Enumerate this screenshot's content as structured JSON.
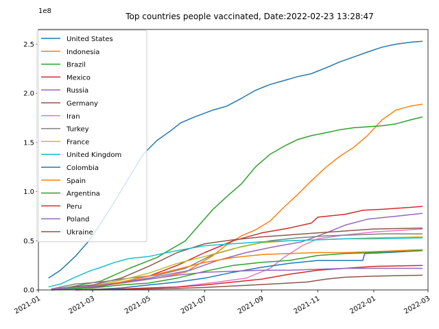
{
  "chart_data": {
    "type": "line",
    "title": "Top countries people vaccinated, Date:2022-02-23 13:28:47",
    "xlabel": "",
    "ylabel": "",
    "y_scale_label": "1e8",
    "xlim": [
      "2021-01-01",
      "2022-03-01"
    ],
    "ylim": [
      0,
      2.65
    ],
    "x_ticks": [
      "2021-01",
      "2021-03",
      "2021-05",
      "2021-07",
      "2021-09",
      "2021-11",
      "2022-01",
      "2022-03"
    ],
    "y_ticks": [
      0.0,
      0.5,
      1.0,
      1.5,
      2.0,
      2.5
    ],
    "y_tick_labels": [
      "0.0",
      "0.5",
      "1.0",
      "1.5",
      "2.0",
      "2.5"
    ],
    "grid": false,
    "legend_position": "top-left",
    "series": [
      {
        "name": "United States",
        "color": "#1f77b4",
        "points": [
          [
            "2021-01-12",
            0.12
          ],
          [
            "2021-01-25",
            0.2
          ],
          [
            "2021-02-10",
            0.34
          ],
          [
            "2021-02-25",
            0.5
          ],
          [
            "2021-03-10",
            0.68
          ],
          [
            "2021-03-25",
            0.9
          ],
          [
            "2021-04-10",
            1.15
          ],
          [
            "2021-04-25",
            1.38
          ],
          [
            "2021-05-10",
            1.52
          ],
          [
            "2021-05-25",
            1.62
          ],
          [
            "2021-06-05",
            1.7
          ],
          [
            "2021-06-20",
            1.76
          ],
          [
            "2021-07-10",
            1.83
          ],
          [
            "2021-07-25",
            1.87
          ],
          [
            "2021-08-10",
            1.95
          ],
          [
            "2021-08-25",
            2.03
          ],
          [
            "2021-09-10",
            2.09
          ],
          [
            "2021-09-25",
            2.13
          ],
          [
            "2021-10-10",
            2.17
          ],
          [
            "2021-10-25",
            2.2
          ],
          [
            "2021-11-10",
            2.26
          ],
          [
            "2021-11-25",
            2.32
          ],
          [
            "2021-12-10",
            2.37
          ],
          [
            "2021-12-25",
            2.42
          ],
          [
            "2022-01-10",
            2.47
          ],
          [
            "2022-01-25",
            2.5
          ],
          [
            "2022-02-10",
            2.52
          ],
          [
            "2022-02-23",
            2.53
          ]
        ]
      },
      {
        "name": "Indonesia",
        "color": "#ff7f0e",
        "points": [
          [
            "2021-01-15",
            0.0
          ],
          [
            "2021-02-10",
            0.01
          ],
          [
            "2021-03-10",
            0.04
          ],
          [
            "2021-04-10",
            0.08
          ],
          [
            "2021-05-10",
            0.12
          ],
          [
            "2021-06-10",
            0.18
          ],
          [
            "2021-07-10",
            0.35
          ],
          [
            "2021-07-25",
            0.46
          ],
          [
            "2021-08-10",
            0.55
          ],
          [
            "2021-08-25",
            0.61
          ],
          [
            "2021-09-10",
            0.7
          ],
          [
            "2021-09-25",
            0.84
          ],
          [
            "2021-10-10",
            0.97
          ],
          [
            "2021-10-25",
            1.11
          ],
          [
            "2021-11-10",
            1.25
          ],
          [
            "2021-11-25",
            1.36
          ],
          [
            "2021-12-10",
            1.45
          ],
          [
            "2021-12-25",
            1.57
          ],
          [
            "2022-01-10",
            1.73
          ],
          [
            "2022-01-25",
            1.83
          ],
          [
            "2022-02-10",
            1.87
          ],
          [
            "2022-02-23",
            1.89
          ]
        ]
      },
      {
        "name": "Brazil",
        "color": "#2ca02c",
        "points": [
          [
            "2021-01-18",
            0.0
          ],
          [
            "2021-02-10",
            0.04
          ],
          [
            "2021-03-10",
            0.09
          ],
          [
            "2021-04-10",
            0.22
          ],
          [
            "2021-05-10",
            0.33
          ],
          [
            "2021-06-10",
            0.5
          ],
          [
            "2021-07-10",
            0.82
          ],
          [
            "2021-07-25",
            0.95
          ],
          [
            "2021-08-10",
            1.08
          ],
          [
            "2021-08-25",
            1.25
          ],
          [
            "2021-09-10",
            1.38
          ],
          [
            "2021-09-25",
            1.46
          ],
          [
            "2021-10-10",
            1.53
          ],
          [
            "2021-10-25",
            1.57
          ],
          [
            "2021-11-10",
            1.6
          ],
          [
            "2021-11-25",
            1.63
          ],
          [
            "2021-12-10",
            1.65
          ],
          [
            "2021-12-25",
            1.66
          ],
          [
            "2022-01-10",
            1.67
          ],
          [
            "2022-01-25",
            1.69
          ],
          [
            "2022-02-10",
            1.73
          ],
          [
            "2022-02-23",
            1.76
          ]
        ]
      },
      {
        "name": "Mexico",
        "color": "#d62728",
        "points": [
          [
            "2021-01-15",
            0.0
          ],
          [
            "2021-03-01",
            0.02
          ],
          [
            "2021-04-01",
            0.08
          ],
          [
            "2021-05-01",
            0.14
          ],
          [
            "2021-06-01",
            0.25
          ],
          [
            "2021-07-01",
            0.38
          ],
          [
            "2021-08-01",
            0.5
          ],
          [
            "2021-09-01",
            0.58
          ],
          [
            "2021-10-01",
            0.63
          ],
          [
            "2021-10-25",
            0.68
          ],
          [
            "2021-11-01",
            0.74
          ],
          [
            "2021-12-01",
            0.77
          ],
          [
            "2021-12-20",
            0.81
          ],
          [
            "2022-01-10",
            0.82
          ],
          [
            "2022-02-10",
            0.84
          ],
          [
            "2022-02-23",
            0.85
          ]
        ]
      },
      {
        "name": "Russia",
        "color": "#9467bd",
        "points": [
          [
            "2021-01-15",
            0.01
          ],
          [
            "2021-03-01",
            0.03
          ],
          [
            "2021-05-01",
            0.12
          ],
          [
            "2021-06-15",
            0.2
          ],
          [
            "2021-07-15",
            0.3
          ],
          [
            "2021-08-15",
            0.38
          ],
          [
            "2021-09-15",
            0.44
          ],
          [
            "2021-10-15",
            0.49
          ],
          [
            "2021-11-10",
            0.58
          ],
          [
            "2021-12-01",
            0.66
          ],
          [
            "2021-12-25",
            0.72
          ],
          [
            "2022-01-25",
            0.75
          ],
          [
            "2022-02-23",
            0.78
          ]
        ]
      },
      {
        "name": "Germany",
        "color": "#8c564b",
        "points": [
          [
            "2021-01-15",
            0.01
          ],
          [
            "2021-03-01",
            0.05
          ],
          [
            "2021-04-01",
            0.12
          ],
          [
            "2021-05-01",
            0.24
          ],
          [
            "2021-06-01",
            0.38
          ],
          [
            "2021-07-01",
            0.47
          ],
          [
            "2021-08-01",
            0.51
          ],
          [
            "2021-09-01",
            0.54
          ],
          [
            "2021-10-01",
            0.56
          ],
          [
            "2021-11-01",
            0.58
          ],
          [
            "2021-12-01",
            0.6
          ],
          [
            "2022-01-01",
            0.62
          ],
          [
            "2022-02-23",
            0.63
          ]
        ]
      },
      {
        "name": "Iran",
        "color": "#e377c2",
        "points": [
          [
            "2021-02-10",
            0.0
          ],
          [
            "2021-04-01",
            0.01
          ],
          [
            "2021-06-01",
            0.03
          ],
          [
            "2021-07-15",
            0.08
          ],
          [
            "2021-08-15",
            0.12
          ],
          [
            "2021-09-10",
            0.22
          ],
          [
            "2021-09-25",
            0.33
          ],
          [
            "2021-10-15",
            0.45
          ],
          [
            "2021-11-01",
            0.52
          ],
          [
            "2021-12-01",
            0.56
          ],
          [
            "2022-01-01",
            0.59
          ],
          [
            "2022-02-23",
            0.62
          ]
        ]
      },
      {
        "name": "Turkey",
        "color": "#7f7f7f",
        "points": [
          [
            "2021-01-15",
            0.01
          ],
          [
            "2021-02-10",
            0.06
          ],
          [
            "2021-03-10",
            0.08
          ],
          [
            "2021-04-10",
            0.12
          ],
          [
            "2021-05-10",
            0.15
          ],
          [
            "2021-06-10",
            0.22
          ],
          [
            "2021-07-10",
            0.36
          ],
          [
            "2021-08-10",
            0.44
          ],
          [
            "2021-09-10",
            0.5
          ],
          [
            "2021-10-10",
            0.53
          ],
          [
            "2021-11-10",
            0.55
          ],
          [
            "2021-12-10",
            0.56
          ],
          [
            "2022-01-10",
            0.57
          ],
          [
            "2022-02-23",
            0.57
          ]
        ]
      },
      {
        "name": "France",
        "color": "#bcbd22",
        "points": [
          [
            "2021-01-15",
            0.01
          ],
          [
            "2021-03-01",
            0.04
          ],
          [
            "2021-04-01",
            0.1
          ],
          [
            "2021-05-01",
            0.17
          ],
          [
            "2021-06-01",
            0.27
          ],
          [
            "2021-07-01",
            0.34
          ],
          [
            "2021-08-01",
            0.42
          ],
          [
            "2021-09-01",
            0.48
          ],
          [
            "2021-10-01",
            0.5
          ],
          [
            "2021-11-01",
            0.51
          ],
          [
            "2021-12-01",
            0.52
          ],
          [
            "2022-01-01",
            0.53
          ],
          [
            "2022-02-23",
            0.54
          ]
        ]
      },
      {
        "name": "United Kingdom",
        "color": "#17becf",
        "points": [
          [
            "2021-01-12",
            0.03
          ],
          [
            "2021-01-25",
            0.06
          ],
          [
            "2021-02-10",
            0.13
          ],
          [
            "2021-02-25",
            0.19
          ],
          [
            "2021-03-10",
            0.23
          ],
          [
            "2021-03-25",
            0.28
          ],
          [
            "2021-04-10",
            0.32
          ],
          [
            "2021-05-01",
            0.34
          ],
          [
            "2021-06-01",
            0.4
          ],
          [
            "2021-07-01",
            0.45
          ],
          [
            "2021-08-01",
            0.47
          ],
          [
            "2021-09-01",
            0.49
          ],
          [
            "2021-10-01",
            0.5
          ],
          [
            "2021-11-01",
            0.51
          ],
          [
            "2021-12-01",
            0.52
          ],
          [
            "2022-01-01",
            0.52
          ],
          [
            "2022-02-23",
            0.53
          ]
        ]
      },
      {
        "name": "Colombia",
        "color": "#1f77b4",
        "points": [
          [
            "2021-02-20",
            0.0
          ],
          [
            "2021-04-01",
            0.02
          ],
          [
            "2021-05-01",
            0.05
          ],
          [
            "2021-06-01",
            0.08
          ],
          [
            "2021-07-01",
            0.12
          ],
          [
            "2021-08-01",
            0.18
          ],
          [
            "2021-09-01",
            0.23
          ],
          [
            "2021-10-01",
            0.27
          ],
          [
            "2021-11-01",
            0.3
          ],
          [
            "2021-12-01",
            0.3
          ],
          [
            "2021-12-20",
            0.3
          ],
          [
            "2021-12-22",
            0.37
          ],
          [
            "2022-01-15",
            0.38
          ],
          [
            "2022-02-23",
            0.4
          ]
        ]
      },
      {
        "name": "Spain",
        "color": "#ff7f0e",
        "points": [
          [
            "2021-01-15",
            0.01
          ],
          [
            "2021-03-01",
            0.04
          ],
          [
            "2021-04-01",
            0.08
          ],
          [
            "2021-05-01",
            0.14
          ],
          [
            "2021-06-01",
            0.21
          ],
          [
            "2021-07-01",
            0.28
          ],
          [
            "2021-08-01",
            0.33
          ],
          [
            "2021-09-01",
            0.36
          ],
          [
            "2021-10-01",
            0.37
          ],
          [
            "2021-11-01",
            0.38
          ],
          [
            "2021-12-01",
            0.38
          ],
          [
            "2022-01-01",
            0.39
          ],
          [
            "2022-02-23",
            0.41
          ]
        ]
      },
      {
        "name": "Argentina",
        "color": "#2ca02c",
        "points": [
          [
            "2021-01-15",
            0.0
          ],
          [
            "2021-03-01",
            0.02
          ],
          [
            "2021-04-01",
            0.05
          ],
          [
            "2021-05-01",
            0.07
          ],
          [
            "2021-06-01",
            0.12
          ],
          [
            "2021-07-01",
            0.19
          ],
          [
            "2021-08-01",
            0.25
          ],
          [
            "2021-09-01",
            0.28
          ],
          [
            "2021-10-01",
            0.3
          ],
          [
            "2021-11-01",
            0.35
          ],
          [
            "2021-12-01",
            0.37
          ],
          [
            "2022-01-01",
            0.38
          ],
          [
            "2022-02-23",
            0.4
          ]
        ]
      },
      {
        "name": "Peru",
        "color": "#d62728",
        "points": [
          [
            "2021-02-10",
            0.0
          ],
          [
            "2021-04-01",
            0.01
          ],
          [
            "2021-05-01",
            0.02
          ],
          [
            "2021-06-01",
            0.03
          ],
          [
            "2021-07-01",
            0.05
          ],
          [
            "2021-08-01",
            0.08
          ],
          [
            "2021-09-01",
            0.11
          ],
          [
            "2021-10-01",
            0.16
          ],
          [
            "2021-11-01",
            0.2
          ],
          [
            "2021-12-01",
            0.22
          ],
          [
            "2022-01-01",
            0.24
          ],
          [
            "2022-02-23",
            0.25
          ]
        ]
      },
      {
        "name": "Poland",
        "color": "#9467bd",
        "points": [
          [
            "2021-01-15",
            0.01
          ],
          [
            "2021-03-01",
            0.04
          ],
          [
            "2021-04-01",
            0.07
          ],
          [
            "2021-05-01",
            0.11
          ],
          [
            "2021-06-01",
            0.15
          ],
          [
            "2021-07-01",
            0.18
          ],
          [
            "2021-08-01",
            0.19
          ],
          [
            "2021-09-01",
            0.2
          ],
          [
            "2021-10-01",
            0.2
          ],
          [
            "2021-11-01",
            0.21
          ],
          [
            "2021-12-01",
            0.22
          ],
          [
            "2022-01-01",
            0.22
          ],
          [
            "2022-02-23",
            0.22
          ]
        ]
      },
      {
        "name": "Ukraine",
        "color": "#8c564b",
        "points": [
          [
            "2021-02-25",
            0.0
          ],
          [
            "2021-04-01",
            0.005
          ],
          [
            "2021-05-01",
            0.01
          ],
          [
            "2021-06-01",
            0.015
          ],
          [
            "2021-07-01",
            0.025
          ],
          [
            "2021-08-01",
            0.04
          ],
          [
            "2021-09-01",
            0.055
          ],
          [
            "2021-10-01",
            0.07
          ],
          [
            "2021-10-20",
            0.08
          ],
          [
            "2021-11-10",
            0.11
          ],
          [
            "2021-12-01",
            0.13
          ],
          [
            "2022-01-01",
            0.14
          ],
          [
            "2022-02-23",
            0.15
          ]
        ]
      }
    ]
  }
}
